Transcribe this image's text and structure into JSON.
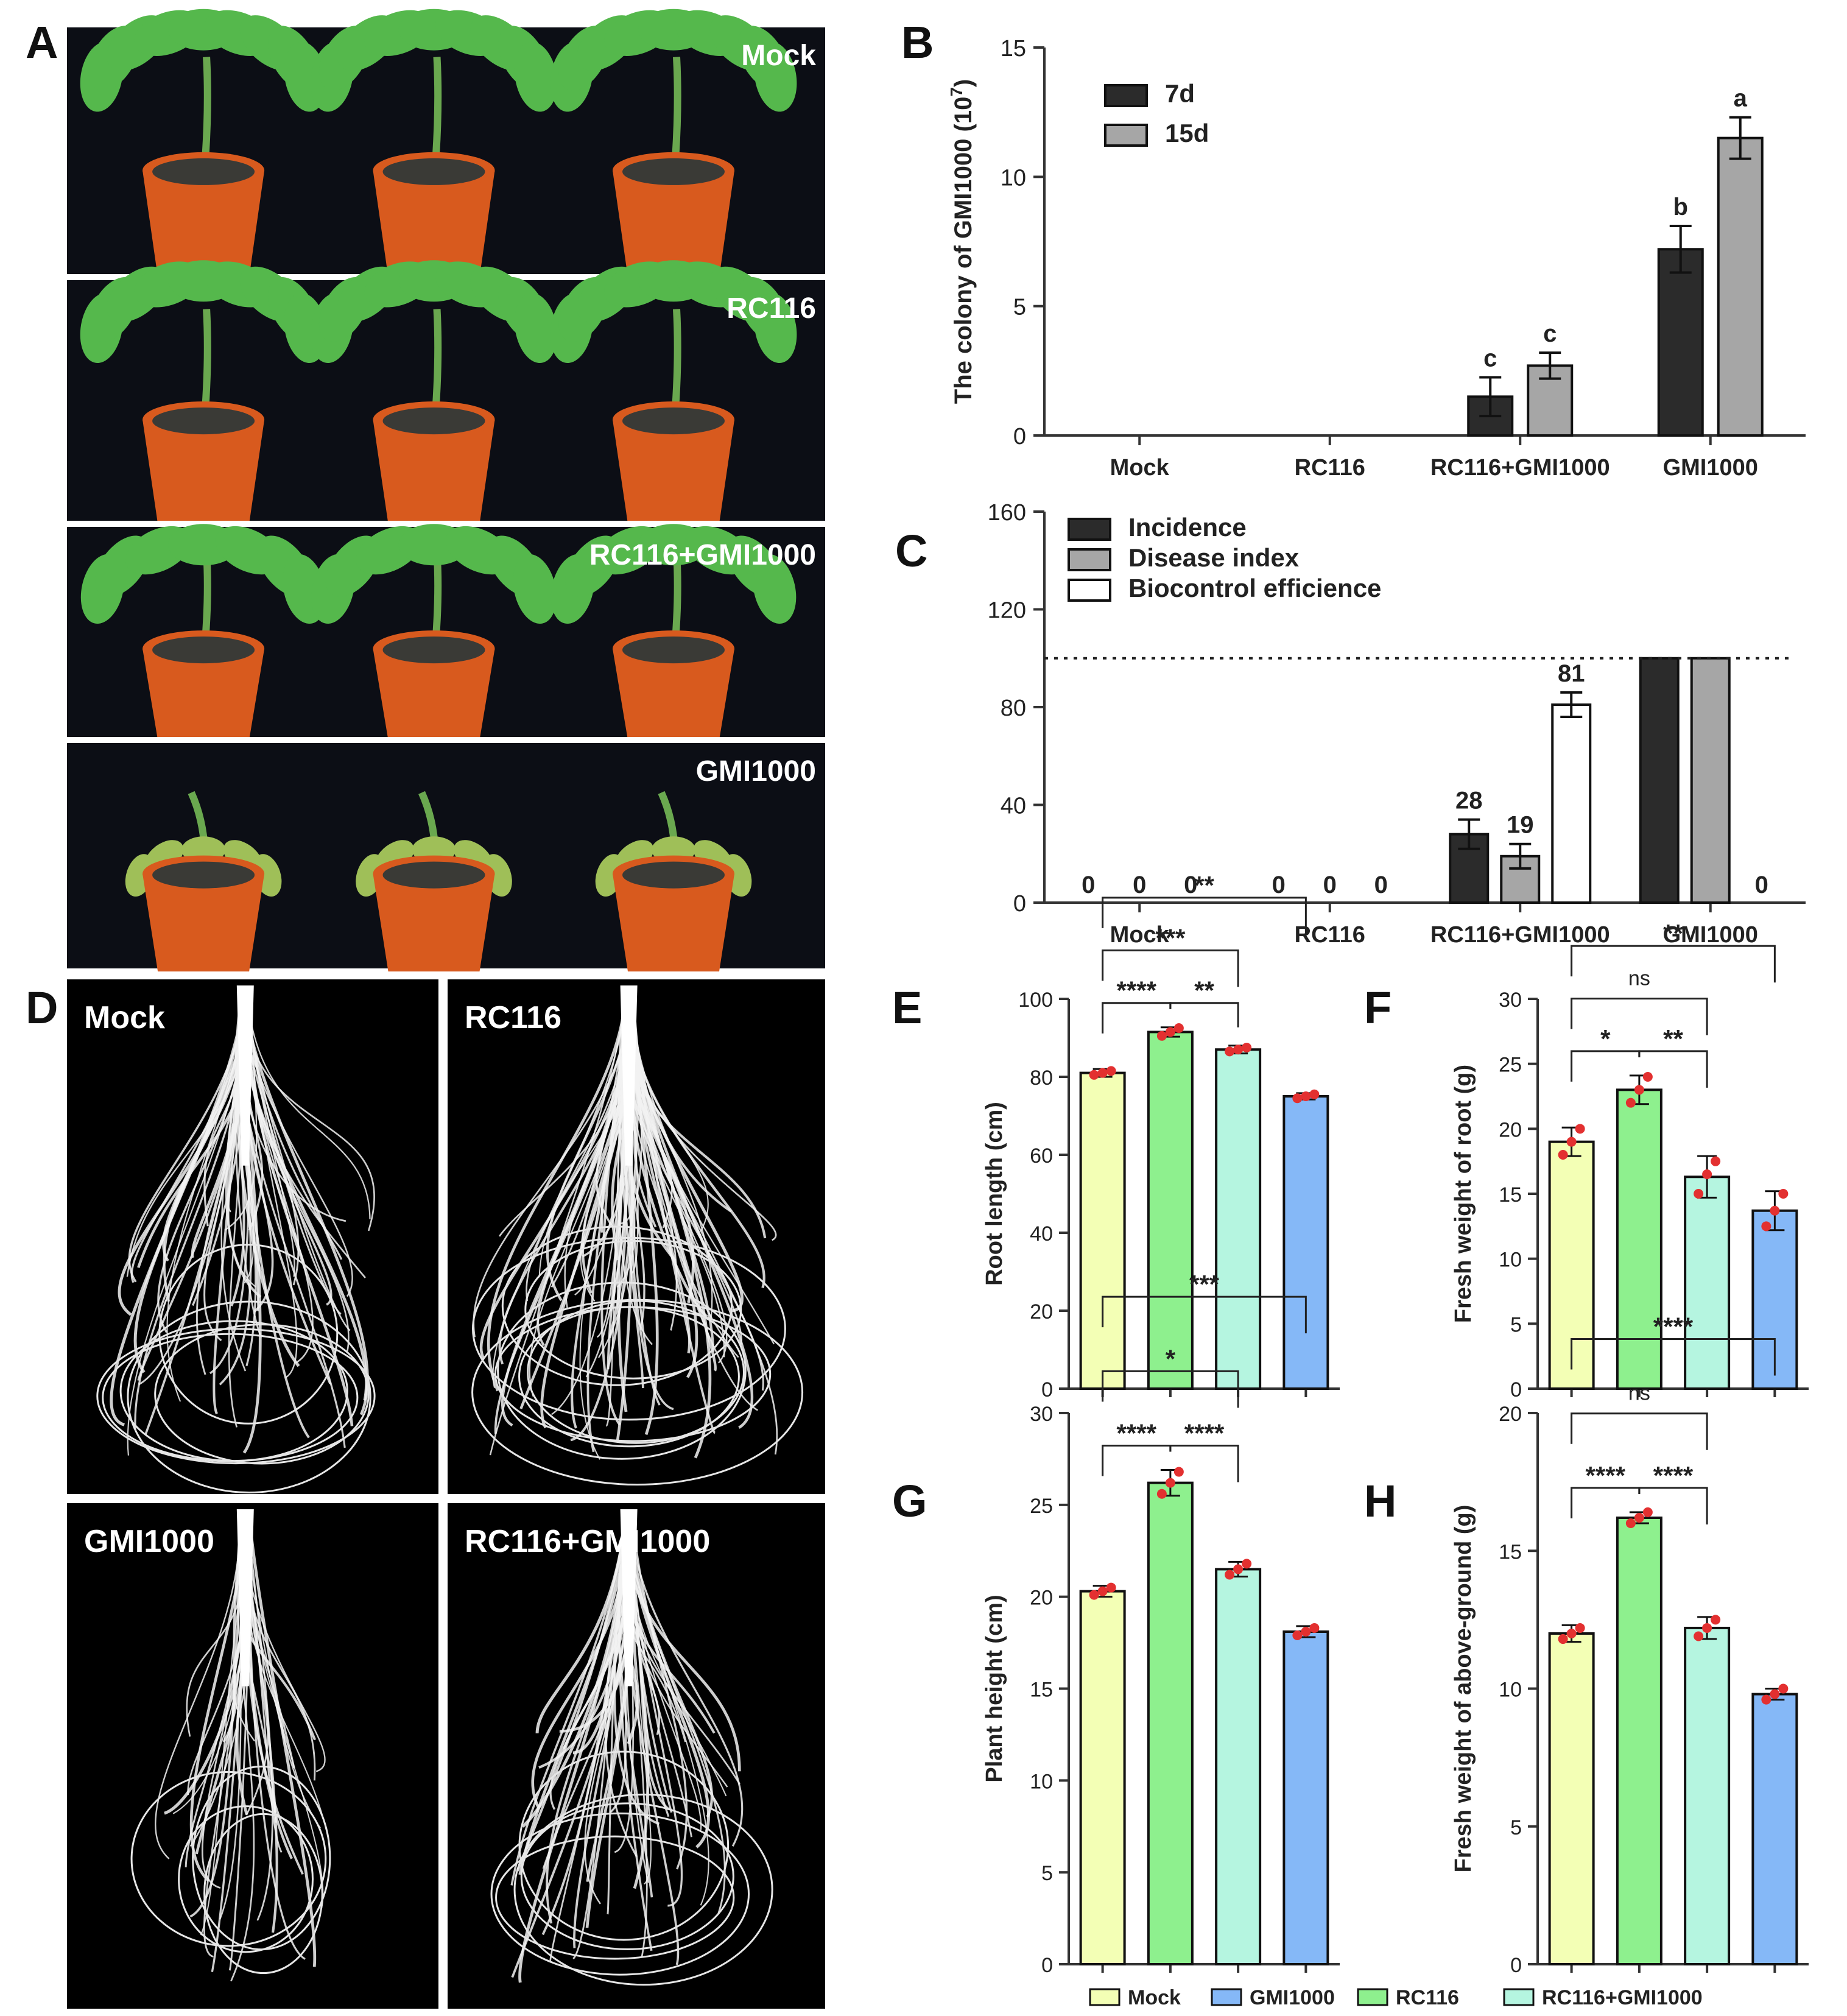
{
  "colors": {
    "bar_dark": "#2b2b2b",
    "bar_gray": "#a6a6a6",
    "bar_white": "#ffffff",
    "mock": "#f3ffb5",
    "rc116": "#8ef08e",
    "rc116_gmi1000": "#b5f5e0",
    "gmi1000": "#85b8f7",
    "dots": "#e33030",
    "pot": "#d85a1e",
    "soil": "#3a3a36",
    "leaf": "#55b84c",
    "leaf_wilt": "#9fbf58"
  },
  "panel_letters": [
    "A",
    "B",
    "C",
    "D",
    "E",
    "F",
    "G",
    "H"
  ],
  "panel_a": {
    "rows": [
      {
        "label": "Mock",
        "state": "healthy"
      },
      {
        "label": "RC116",
        "state": "healthy"
      },
      {
        "label": "RC116+GMI1000",
        "state": "mild"
      },
      {
        "label": "GMI1000",
        "state": "wilted"
      }
    ]
  },
  "panel_d": {
    "images": [
      {
        "label": "Mock",
        "density": 1.0
      },
      {
        "label": "RC116",
        "density": 1.3
      },
      {
        "label": "GMI1000",
        "density": 0.6
      },
      {
        "label": "RC116+GMI1000",
        "density": 0.9
      }
    ]
  },
  "chart_data": [
    {
      "panel": "B",
      "type": "bar",
      "categories": [
        "Mock",
        "RC116",
        "RC116+GMI1000",
        "GMI1000"
      ],
      "ylabel": "The colony of GMI1000 (10",
      "ylabel_sup": "7",
      "ylabel_close": ")",
      "ylim": [
        0,
        15
      ],
      "yticks": [
        0,
        5,
        10,
        15
      ],
      "legend": "top-left",
      "series": [
        {
          "name": "7d",
          "color": "#2b2b2b",
          "values": [
            0,
            0,
            1.5,
            7.2
          ],
          "errors": [
            0,
            0,
            0.75,
            0.9
          ],
          "labels": [
            "",
            "",
            "c",
            "b"
          ]
        },
        {
          "name": "15d",
          "color": "#a6a6a6",
          "values": [
            0,
            0,
            2.7,
            11.5
          ],
          "errors": [
            0,
            0,
            0.5,
            0.8
          ],
          "labels": [
            "",
            "",
            "c",
            "a"
          ]
        }
      ]
    },
    {
      "panel": "C",
      "type": "bar",
      "categories": [
        "Mock",
        "RC116",
        "RC116+GMI1000",
        "GMI1000"
      ],
      "ylim": [
        0,
        160
      ],
      "yticks": [
        0,
        40,
        80,
        120,
        160
      ],
      "reference_line": 100,
      "legend": "top-left",
      "series": [
        {
          "name": "Incidence",
          "color": "#2b2b2b",
          "values": [
            0,
            0,
            28,
            100
          ],
          "errors": [
            0,
            0,
            6,
            0
          ],
          "labels": [
            "0",
            "0",
            "28",
            ""
          ]
        },
        {
          "name": "Disease index",
          "color": "#a6a6a6",
          "values": [
            0,
            0,
            19,
            100
          ],
          "errors": [
            0,
            0,
            5,
            0
          ],
          "labels": [
            "0",
            "0",
            "19",
            ""
          ]
        },
        {
          "name": "Biocontrol efficience",
          "color": "#ffffff",
          "values": [
            0,
            0,
            81,
            0
          ],
          "errors": [
            0,
            0,
            5,
            0
          ],
          "labels": [
            "0",
            "0",
            "81",
            "0"
          ]
        }
      ]
    },
    {
      "panel": "E",
      "type": "bar",
      "ylabel": "Root length (cm)",
      "ylim": [
        0,
        100
      ],
      "yticks": [
        0,
        20,
        40,
        60,
        80,
        100
      ],
      "groups": [
        "Mock",
        "RC116",
        "RC116+GMI1000",
        "GMI1000"
      ],
      "values": [
        81,
        91.5,
        87,
        75
      ],
      "errors": [
        1,
        1.2,
        1,
        0.8
      ],
      "points": [
        [
          80.5,
          81,
          81.5
        ],
        [
          90.5,
          91.5,
          92.5
        ],
        [
          86.5,
          87,
          87.5
        ],
        [
          74.5,
          75,
          75.5
        ]
      ],
      "significance": [
        {
          "from": 0,
          "to": 1,
          "text": "****"
        },
        {
          "from": 1,
          "to": 2,
          "text": "**"
        },
        {
          "from": 0,
          "to": 2,
          "text": "***"
        },
        {
          "from": 0,
          "to": 3,
          "text": "**"
        }
      ]
    },
    {
      "panel": "F",
      "type": "bar",
      "ylabel": "Fresh weight of root (g)",
      "ylim": [
        0,
        30
      ],
      "yticks": [
        0,
        5,
        10,
        15,
        20,
        25,
        30
      ],
      "groups": [
        "Mock",
        "RC116",
        "RC116+GMI1000",
        "GMI1000"
      ],
      "values": [
        19,
        23,
        16.3,
        13.7
      ],
      "errors": [
        1.1,
        1.1,
        1.6,
        1.5
      ],
      "points": [
        [
          18,
          19,
          20
        ],
        [
          22,
          23,
          24
        ],
        [
          15,
          16.5,
          17.5
        ],
        [
          12.5,
          13.7,
          15
        ]
      ],
      "significance": [
        {
          "from": 0,
          "to": 1,
          "text": "*"
        },
        {
          "from": 1,
          "to": 2,
          "text": "**"
        },
        {
          "from": 0,
          "to": 2,
          "text": "ns"
        },
        {
          "from": 0,
          "to": 3,
          "text": "**"
        }
      ]
    },
    {
      "panel": "G",
      "type": "bar",
      "ylabel": "Plant height (cm)",
      "ylim": [
        0,
        30
      ],
      "yticks": [
        0,
        5,
        10,
        15,
        20,
        25,
        30
      ],
      "groups": [
        "Mock",
        "RC116",
        "RC116+GMI1000",
        "GMI1000"
      ],
      "values": [
        20.3,
        26.2,
        21.5,
        18.1
      ],
      "errors": [
        0.3,
        0.7,
        0.4,
        0.3
      ],
      "points": [
        [
          20.1,
          20.3,
          20.5
        ],
        [
          25.6,
          26.2,
          26.8
        ],
        [
          21.2,
          21.5,
          21.8
        ],
        [
          17.9,
          18.1,
          18.3
        ]
      ],
      "significance": [
        {
          "from": 0,
          "to": 1,
          "text": "****"
        },
        {
          "from": 1,
          "to": 2,
          "text": "****"
        },
        {
          "from": 0,
          "to": 2,
          "text": "*"
        },
        {
          "from": 0,
          "to": 3,
          "text": "***"
        }
      ]
    },
    {
      "panel": "H",
      "type": "bar",
      "ylabel": "Fresh weight of above-ground (g)",
      "ylim": [
        0,
        20
      ],
      "yticks": [
        0,
        5,
        10,
        15,
        20
      ],
      "groups": [
        "Mock",
        "RC116",
        "RC116+GMI1000",
        "GMI1000"
      ],
      "values": [
        12,
        16.2,
        12.2,
        9.8
      ],
      "errors": [
        0.3,
        0.2,
        0.4,
        0.2
      ],
      "points": [
        [
          11.8,
          12,
          12.2
        ],
        [
          16,
          16.2,
          16.4
        ],
        [
          11.9,
          12.2,
          12.5
        ],
        [
          9.6,
          9.8,
          10
        ]
      ],
      "significance": [
        {
          "from": 0,
          "to": 1,
          "text": "****"
        },
        {
          "from": 1,
          "to": 2,
          "text": "****"
        },
        {
          "from": 0,
          "to": 2,
          "text": "ns"
        },
        {
          "from": 0,
          "to": 3,
          "text": "****"
        }
      ]
    }
  ],
  "shared_legend": [
    {
      "name": "Mock",
      "color": "#f3ffb5"
    },
    {
      "name": "GMI1000",
      "color": "#85b8f7"
    },
    {
      "name": "RC116",
      "color": "#8ef08e"
    },
    {
      "name": "RC116+GMI1000",
      "color": "#b5f5e0"
    }
  ]
}
